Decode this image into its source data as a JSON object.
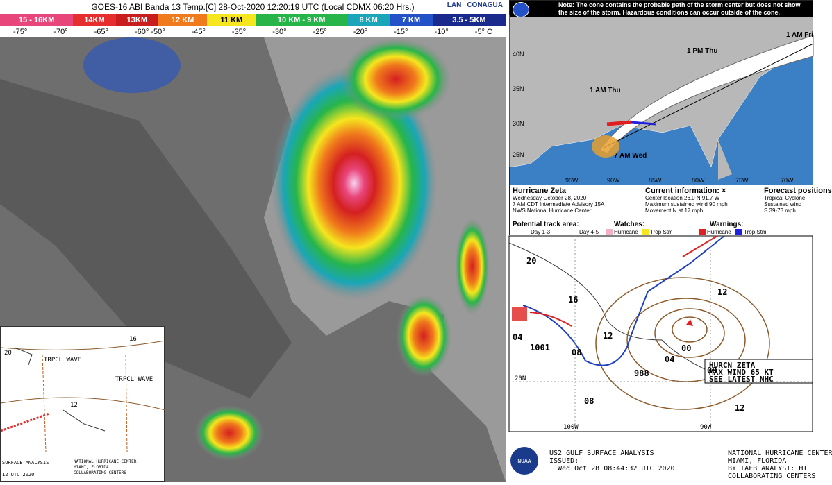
{
  "satellite": {
    "title": "GOES-16 ABI Banda 13 Temp.[C] 28-Oct-2020 12:20:19 UTC (Local CDMX  06:20 Hrs.)",
    "logos": [
      "LAN",
      "CONAGUA"
    ],
    "scale": [
      {
        "label": "15 - 16KM",
        "color": "#e8457a"
      },
      {
        "label": "14KM",
        "color": "#e62e2e"
      },
      {
        "label": "13KM",
        "color": "#c81e1e"
      },
      {
        "label": "12 KM",
        "color": "#f07a1c"
      },
      {
        "label": "11 KM",
        "color": "#f5e61e"
      },
      {
        "label": "10 KM - 9 KM",
        "color": "#27b54a"
      },
      {
        "label": "8 KM",
        "color": "#1aa6b8"
      },
      {
        "label": "7 KM",
        "color": "#2352c8"
      },
      {
        "label": "3.5 - 5KM",
        "color": "#1a2a8c"
      }
    ],
    "temps": [
      "-75°",
      "-70°",
      "-65°",
      "-60° -50°",
      "-45°",
      "-35°",
      "-30°",
      "-25°",
      "-20°",
      "-15°",
      "-10°",
      "-5° C"
    ],
    "inset": {
      "labels": [
        "TRPCL WAVE",
        "TRPCL WAVE",
        "16",
        "20",
        "12"
      ],
      "footer": [
        "SURFACE ANALYSIS",
        "12 UTC 2020",
        "NATIONAL HURRICANE CENTER",
        "MIAMI, FLORIDA",
        "COLLABORATING CENTERS"
      ]
    }
  },
  "cone_map": {
    "note": "Note: The cone contains the probable path of the storm center but does not show the size of the storm. Hazardous conditions can occur outside of the cone.",
    "lat_labels": [
      "40N",
      "35N",
      "30N",
      "25N"
    ],
    "lon_labels": [
      "95W",
      "90W",
      "85W",
      "80W",
      "75W",
      "70W"
    ],
    "times": [
      "1 AM Fri",
      "1 PM Thu",
      "1 AM Thu",
      "7 AM Wed"
    ],
    "storm": {
      "name": "Hurricane Zeta",
      "lines": [
        "Wednesday October 28, 2020",
        "7 AM CDT Intermediate Advisory 15A",
        "NWS National Hurricane Center"
      ]
    },
    "current": {
      "title": "Current information: ×",
      "lines": [
        "Center location 26.0 N 91.7 W",
        "Maximum sustained wind 90 mph",
        "Movement N at 17 mph"
      ]
    },
    "forecast": {
      "title": "Forecast positions",
      "lines": [
        "Tropical Cyclone",
        "Sustained wind",
        "S 39-73 mph"
      ]
    },
    "legend": {
      "track": "Potential track area:",
      "day13": "Day 1-3",
      "day45": "Day 4-5",
      "watches": "Watches:",
      "warnings": "Warnings:",
      "hurricane": "Hurricane",
      "tropstm": "Trop Stm"
    }
  },
  "surface": {
    "pressures": [
      "1001",
      "988",
      "00",
      "04",
      "08",
      "12",
      "16",
      "20",
      "04",
      "08",
      "12",
      "08",
      "12"
    ],
    "box": [
      "HURCN ZETA",
      "MAX WIND 65 KT",
      "SEE LATEST NHC"
    ],
    "grid": [
      "20N",
      "100W",
      "90W"
    ],
    "footer_left": [
      "US2 GULF SURFACE ANALYSIS",
      "ISSUED:",
      "Wed Oct 28 08:44:32 UTC 2020"
    ],
    "footer_right": [
      "NATIONAL HURRICANE CENTER",
      "MIAMI, FLORIDA",
      "BY TAFB ANALYST: HT",
      "COLLABORATING CENTERS"
    ],
    "logo": "NOAA"
  }
}
